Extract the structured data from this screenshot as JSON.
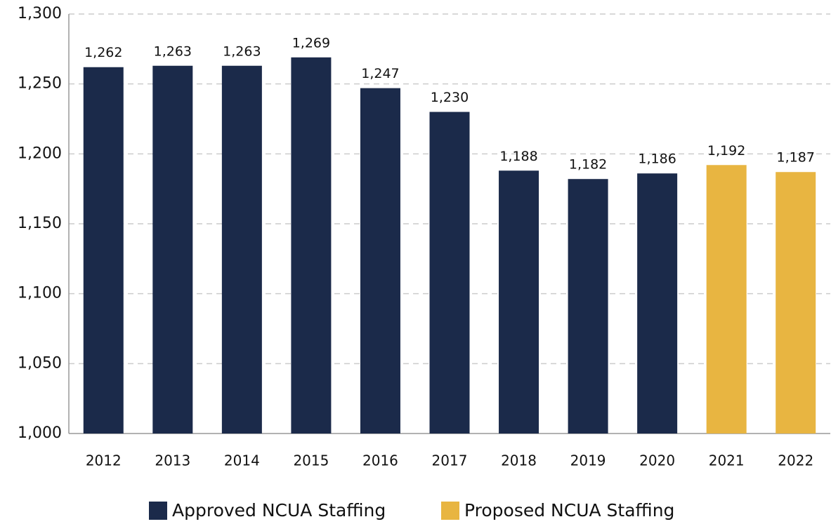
{
  "chart_data": {
    "type": "bar",
    "categories": [
      "2012",
      "2013",
      "2014",
      "2015",
      "2016",
      "2017",
      "2018",
      "2019",
      "2020",
      "2021",
      "2022"
    ],
    "series": [
      {
        "name": "Approved NCUA Staffing",
        "color": "#1b2a4a",
        "values": [
          1262,
          1263,
          1263,
          1269,
          1247,
          1230,
          1188,
          1182,
          1186,
          null,
          null
        ],
        "value_labels": [
          "1,262",
          "1,263",
          "1,263",
          "1,269",
          "1,247",
          "1,230",
          "1,188",
          "1,182",
          "1,186",
          null,
          null
        ]
      },
      {
        "name": "Proposed NCUA Staffing",
        "color": "#e8b541",
        "values": [
          null,
          null,
          null,
          null,
          null,
          null,
          null,
          null,
          null,
          1192,
          1187
        ],
        "value_labels": [
          null,
          null,
          null,
          null,
          null,
          null,
          null,
          null,
          null,
          "1,192",
          "1,187"
        ]
      }
    ],
    "ylim": [
      1000,
      1300
    ],
    "yticks": [
      {
        "value": 1000,
        "label": "1,000"
      },
      {
        "value": 1050,
        "label": "1,050"
      },
      {
        "value": 1100,
        "label": "1,100"
      },
      {
        "value": 1150,
        "label": "1,150"
      },
      {
        "value": 1200,
        "label": "1,200"
      },
      {
        "value": 1250,
        "label": "1,250"
      },
      {
        "value": 1300,
        "label": "1,300"
      }
    ],
    "grid": true,
    "legend": "bottom"
  }
}
